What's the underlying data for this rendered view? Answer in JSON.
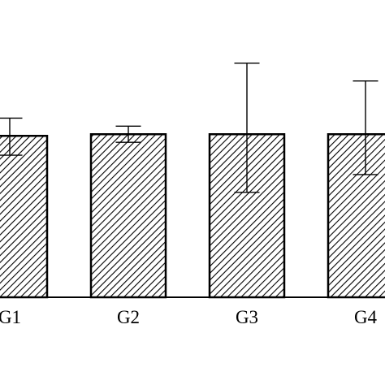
{
  "chart_data": {
    "type": "bar",
    "categories": [
      "G1",
      "G2",
      "G3",
      "G4"
    ],
    "values": [
      100,
      101,
      101,
      101
    ],
    "error_low": [
      88,
      96,
      65,
      76
    ],
    "error_high": [
      111,
      106,
      145,
      134
    ],
    "title": "",
    "xlabel": "",
    "ylabel": "",
    "ylim": [
      0,
      160
    ],
    "grid": false,
    "legend": "none",
    "bar_fill": "diagonal-hatch",
    "colors": {
      "bar_stroke": "#000000",
      "hatch": "#000000",
      "background": "#ffffff"
    }
  }
}
